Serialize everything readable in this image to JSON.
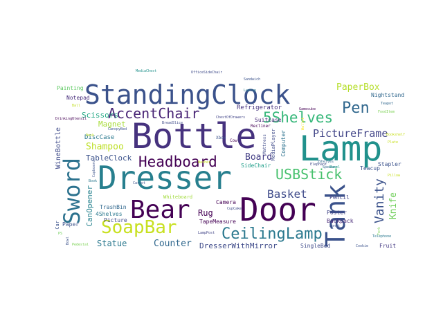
{
  "palette": [
    "#440154",
    "#46327e",
    "#365c8d",
    "#277f8e",
    "#1fa187",
    "#4ac16d",
    "#a0da39",
    "#fde725"
  ],
  "words": [
    {
      "text": "Dresser",
      "color": "#277f8e"
    },
    {
      "text": "Bottle",
      "color": "#46327e"
    },
    {
      "text": "Lamp",
      "color": "#21918c"
    },
    {
      "text": "Door",
      "color": "#440154"
    },
    {
      "text": "StandingClock",
      "color": "#3b528b"
    },
    {
      "text": "Tank",
      "color": "#3b528b"
    },
    {
      "text": "Sword",
      "color": "#2c728e"
    },
    {
      "text": "Bear",
      "color": "#440154"
    },
    {
      "text": "SoapBar",
      "color": "#c8e020"
    },
    {
      "text": "CeilingLamp",
      "color": "#2a788e"
    },
    {
      "text": "Headboard",
      "color": "#440154"
    },
    {
      "text": "5Shelves",
      "color": "#35b779"
    },
    {
      "text": "USBStick",
      "color": "#48c16e"
    },
    {
      "text": "AccentChair",
      "color": "#482475"
    },
    {
      "text": "Pen",
      "color": "#31688e"
    },
    {
      "text": "Vanity",
      "color": "#3b528b"
    },
    {
      "text": "PictureFrame",
      "color": "#414487"
    },
    {
      "text": "Basket",
      "color": "#3e4a89"
    },
    {
      "text": "PaperBox",
      "color": "#b5de2b"
    },
    {
      "text": "Shampoo",
      "color": "#bddf26"
    },
    {
      "text": "Board",
      "color": "#433e85"
    },
    {
      "text": "Knife",
      "color": "#6ece58"
    },
    {
      "text": "Counter",
      "color": "#31688e"
    },
    {
      "text": "Statue",
      "color": "#2a788e"
    },
    {
      "text": "DresserWithMirror",
      "color": "#3e4a89"
    },
    {
      "text": "CanOpener",
      "color": "#26828e"
    },
    {
      "text": "TableClock",
      "color": "#3b528b"
    },
    {
      "text": "Scissors",
      "color": "#22a884"
    },
    {
      "text": "Rug",
      "color": "#440154"
    },
    {
      "text": "Magnet",
      "color": "#a5db36"
    },
    {
      "text": "WineBottle",
      "color": "#3e4a89"
    },
    {
      "text": "Refrigerator",
      "color": "#46327e"
    },
    {
      "text": "DiscCase",
      "color": "#2a788e"
    },
    {
      "text": "Notepad",
      "color": "#472d7b"
    },
    {
      "text": "Painting",
      "color": "#5ec962"
    },
    {
      "text": "Suitcase",
      "color": "#482878"
    },
    {
      "text": "SideChair",
      "color": "#1f9e89"
    },
    {
      "text": "Backpack",
      "color": "#482878"
    },
    {
      "text": "Nightstand",
      "color": "#31688e"
    },
    {
      "text": "Stapler",
      "color": "#3b528b"
    },
    {
      "text": "Poster",
      "color": "#414487"
    },
    {
      "text": "Pencil",
      "color": "#414487"
    },
    {
      "text": "Teacup",
      "color": "#3b528b"
    },
    {
      "text": "Fruit",
      "color": "#443983"
    },
    {
      "text": "SingleBed",
      "color": "#3e4a89"
    },
    {
      "text": "Picture",
      "color": "#3e4a89"
    },
    {
      "text": "Camera",
      "color": "#440154"
    },
    {
      "text": "TapeMeasure",
      "color": "#440154"
    },
    {
      "text": "TrashBin",
      "color": "#31688e"
    },
    {
      "text": "4Shelves",
      "color": "#2a788e"
    },
    {
      "text": "Whiteboard",
      "color": "#a0da39"
    },
    {
      "text": "Paper",
      "color": "#3b528b"
    },
    {
      "text": "Computer",
      "color": "#2c728e"
    },
    {
      "text": "MediaPlayer",
      "color": "#3e4a89"
    },
    {
      "text": "Mattress",
      "color": "#3e4a89"
    },
    {
      "text": "Recliner",
      "color": "#440154"
    },
    {
      "text": "Xbox",
      "color": "#3b528b"
    },
    {
      "text": "Cow",
      "color": "#440154"
    },
    {
      "text": "BreadSlice",
      "color": "#3e4a89"
    },
    {
      "text": "ChestOfDrawers",
      "color": "#414487"
    },
    {
      "text": "Gamecube",
      "color": "#440154"
    },
    {
      "text": "Teapot",
      "color": "#31688e"
    },
    {
      "text": "FoodItem",
      "color": "#7ad151"
    },
    {
      "text": "Laptop",
      "color": "#2a788e"
    },
    {
      "text": "Sandwich",
      "color": "#3b528b"
    },
    {
      "text": "MediaChest",
      "color": "#21918c"
    },
    {
      "text": "OfficeSideChair",
      "color": "#3e4a89"
    },
    {
      "text": "DrinkingUtensil",
      "color": "#440154"
    },
    {
      "text": "Ball",
      "color": "#c2df23"
    },
    {
      "text": "CanopyBed",
      "color": "#3b528b"
    },
    {
      "text": "Desk",
      "color": "#c2df23"
    },
    {
      "text": "Carrot",
      "color": "#3b528b"
    },
    {
      "text": "Speaker",
      "color": "#31688e"
    },
    {
      "text": "Easel",
      "color": "#1fa187"
    },
    {
      "text": "Donut",
      "color": "#3b528b"
    },
    {
      "text": "Telephone",
      "color": "#2a788e"
    },
    {
      "text": "Cookie",
      "color": "#3b528b"
    },
    {
      "text": "CupCake",
      "color": "#3e4a89"
    },
    {
      "text": "LampPost",
      "color": "#414487"
    },
    {
      "text": "Car",
      "color": "#3b528b"
    },
    {
      "text": "PS",
      "color": "#6ece58"
    },
    {
      "text": "Bowl",
      "color": "#3b528b"
    },
    {
      "text": "Pedestal",
      "color": "#7ad151"
    },
    {
      "text": "Washer",
      "color": "#c8e020"
    },
    {
      "text": "Wallet",
      "color": "#fde725"
    },
    {
      "text": "Plate",
      "color": "#c8e020"
    },
    {
      "text": "Cupboard",
      "color": "#3b528b"
    },
    {
      "text": "Elephant",
      "color": "#3e4a89"
    },
    {
      "text": "3Shelves",
      "color": "#31688e"
    },
    {
      "text": "Pillow",
      "color": "#c8e020"
    },
    {
      "text": "Bookshelf",
      "color": "#c8e020"
    },
    {
      "text": "Book",
      "color": "#2a788e"
    },
    {
      "text": "Fork",
      "color": "#7ad151"
    }
  ]
}
